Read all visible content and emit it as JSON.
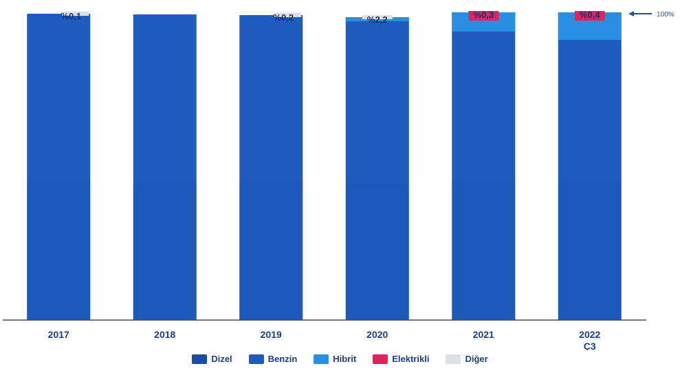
{
  "chart_data": {
    "type": "bar",
    "stacked": true,
    "categories": [
      "2017",
      "2018",
      "2019",
      "2020",
      "2021",
      "2022\nÇ3"
    ],
    "series": [
      {
        "name": "Dizel",
        "color": "#1a4ea6",
        "values": [
          null,
          null,
          null,
          null,
          null,
          null
        ]
      },
      {
        "name": "Benzin",
        "color": "#1e5cbf",
        "values": [
          null,
          null,
          null,
          null,
          null,
          null
        ]
      },
      {
        "name": "Hibrit",
        "color": "#2a8fe0",
        "values": [
          null,
          null,
          null,
          2.2,
          null,
          null
        ]
      },
      {
        "name": "Elektrikli",
        "color": "#e0245e",
        "values": [
          null,
          null,
          null,
          null,
          0.3,
          0.4
        ]
      },
      {
        "name": "Diğer",
        "color": "#dcdfe6",
        "values": [
          0.1,
          null,
          0.2,
          null,
          null,
          null
        ]
      }
    ],
    "top_labels": [
      "%0,1",
      "",
      "%0,2",
      "%2,2",
      "%0,3",
      "%0,4"
    ],
    "stack_tops": [
      100,
      100,
      100,
      100,
      100,
      100
    ],
    "reference_label": "100%",
    "ylim": [
      0,
      100
    ],
    "grid": false,
    "legend_position": "bottom"
  }
}
